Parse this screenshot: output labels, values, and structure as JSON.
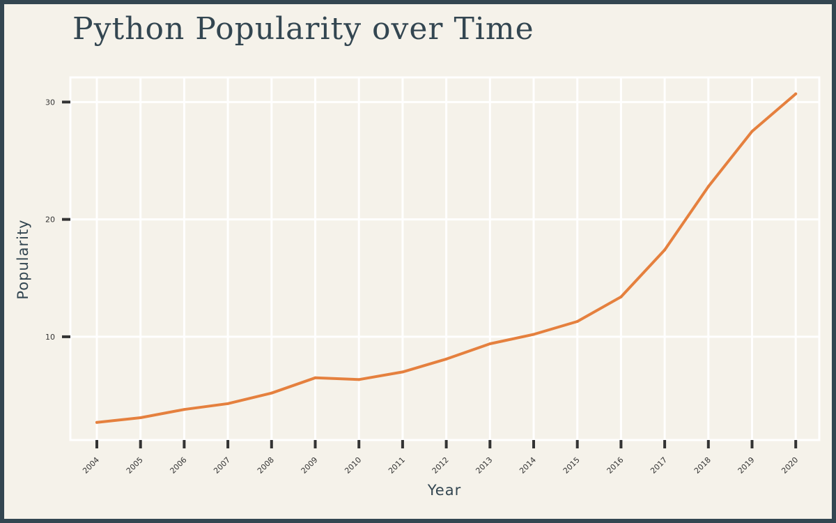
{
  "chart_data": {
    "type": "line",
    "title": "Python Popularity over Time",
    "xlabel": "Year",
    "ylabel": "Popularity",
    "x": [
      2004,
      2005,
      2006,
      2007,
      2008,
      2009,
      2010,
      2011,
      2012,
      2013,
      2014,
      2015,
      2016,
      2017,
      2018,
      2019,
      2020
    ],
    "series": [
      {
        "values": [
          2.7,
          3.1,
          3.8,
          4.3,
          5.2,
          6.5,
          6.35,
          7.0,
          8.1,
          9.4,
          10.2,
          11.3,
          13.4,
          17.4,
          22.8,
          27.5,
          30.7
        ],
        "color": "#e5803e"
      }
    ],
    "yticks": [
      10,
      20,
      30
    ],
    "ylim": [
      1.2,
      32.1
    ],
    "grid": true,
    "colors": {
      "background": "#f5f2ea",
      "border": "#334651",
      "grid": "#ffffff",
      "ticks": "#333333"
    }
  }
}
